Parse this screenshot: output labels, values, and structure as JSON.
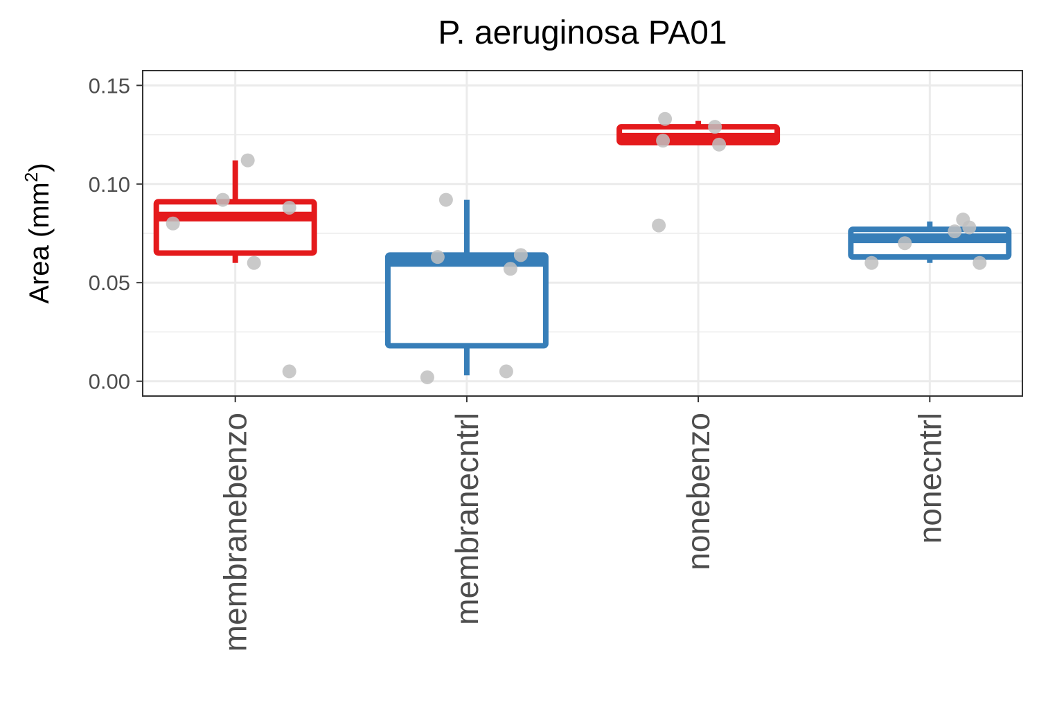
{
  "chart_data": {
    "type": "box",
    "title": "P. aeruginosa PA01",
    "ylabel": "Area (mm",
    "ylabel_sup": "2",
    "ylabel_close": ")",
    "xlabel": "",
    "ylim": [
      -0.0075,
      0.1575
    ],
    "yticks": [
      0.0,
      0.05,
      0.1,
      0.15
    ],
    "ytick_labels": [
      "0.00",
      "0.05",
      "0.10",
      "0.15"
    ],
    "ygrid_minor": [
      0.025,
      0.075,
      0.125
    ],
    "grid": true,
    "legend": "none",
    "categories": [
      "membranebenzo",
      "membranecntrl",
      "nonebenzo",
      "nonecntrl"
    ],
    "boxes": [
      {
        "category": "membranebenzo",
        "color": "#E41A1C",
        "whisker_low": 0.06,
        "q1": 0.065,
        "median": 0.0835,
        "q3": 0.091,
        "whisker_high": 0.112,
        "points": [
          [
            -0.3,
            0.08
          ],
          [
            -0.06,
            0.092
          ],
          [
            0.06,
            0.112
          ],
          [
            0.09,
            0.06
          ],
          [
            0.26,
            0.088
          ],
          [
            0.26,
            0.005
          ]
        ]
      },
      {
        "category": "membranecntrl",
        "color": "#377EB8",
        "whisker_low": 0.003,
        "q1": 0.018,
        "median": 0.0605,
        "q3": 0.064,
        "whisker_high": 0.092,
        "points": [
          [
            -0.19,
            0.002
          ],
          [
            -0.14,
            0.063
          ],
          [
            -0.1,
            0.092
          ],
          [
            0.19,
            0.005
          ],
          [
            0.21,
            0.057
          ],
          [
            0.26,
            0.064
          ]
        ]
      },
      {
        "category": "nonebenzo",
        "color": "#E41A1C",
        "whisker_low": 0.121,
        "q1": 0.121,
        "median": 0.1235,
        "q3": 0.129,
        "whisker_high": 0.132,
        "points": [
          [
            -0.19,
            0.079
          ],
          [
            -0.17,
            0.122
          ],
          [
            -0.16,
            0.133
          ],
          [
            0.08,
            0.129
          ],
          [
            0.1,
            0.12
          ]
        ]
      },
      {
        "category": "nonecntrl",
        "color": "#377EB8",
        "whisker_low": 0.06,
        "q1": 0.063,
        "median": 0.0725,
        "q3": 0.077,
        "whisker_high": 0.081,
        "points": [
          [
            -0.28,
            0.06
          ],
          [
            -0.12,
            0.07
          ],
          [
            0.12,
            0.076
          ],
          [
            0.16,
            0.082
          ],
          [
            0.19,
            0.078
          ],
          [
            0.24,
            0.06
          ]
        ]
      }
    ],
    "point_color": "#BFBFBF"
  }
}
